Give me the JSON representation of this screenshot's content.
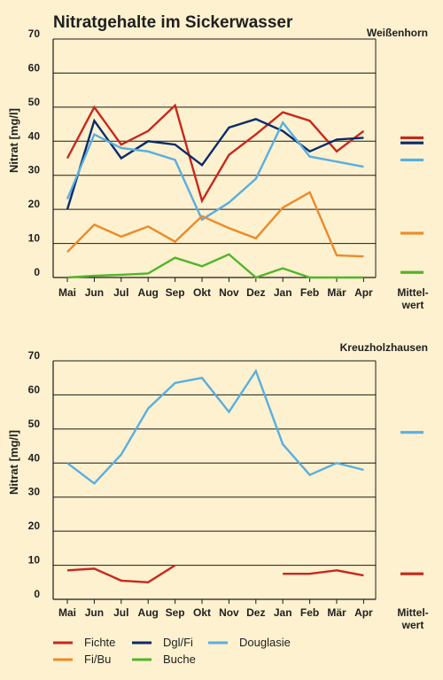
{
  "title": "Nitratgehalte im Sickerwasser",
  "colors": {
    "Fichte": "#c8281e",
    "Dgl/Fi": "#0a2a6a",
    "Douglasie": "#5aaee0",
    "Fi/Bu": "#ec8a2a",
    "Buche": "#52b52a"
  },
  "legend": [
    "Fichte",
    "Dgl/Fi",
    "Douglasie",
    "Fi/Bu",
    "Buche"
  ],
  "chart_data": [
    {
      "type": "line",
      "site": "Weißenhorn",
      "ylabel": "Nitrat [mg/l]",
      "yticks": [
        "70",
        "60",
        "50",
        "40",
        "30",
        "20",
        "10",
        "0"
      ],
      "ylim": [
        0,
        70
      ],
      "categories": [
        "Mai",
        "Jun",
        "Jul",
        "Aug",
        "Sep",
        "Okt",
        "Nov",
        "Dez",
        "Jan",
        "Feb",
        "Mär",
        "Apr"
      ],
      "mean_label": "Mittel-\nwert",
      "series": [
        {
          "name": "Fichte",
          "values": [
            35,
            50,
            39,
            43,
            50.5,
            22.5,
            36,
            42,
            48.5,
            46,
            37,
            43
          ],
          "mean": 41
        },
        {
          "name": "Dgl/Fi",
          "values": [
            20,
            46,
            35,
            40,
            39,
            33,
            44,
            46.5,
            43,
            37,
            40.5,
            41
          ],
          "mean": 39.5
        },
        {
          "name": "Douglasie",
          "values": [
            23,
            42,
            38,
            37,
            34.5,
            17,
            22,
            29,
            45.5,
            35.5,
            34,
            32.5
          ],
          "mean": 34.5
        },
        {
          "name": "Fi/Bu",
          "values": [
            7.5,
            15.5,
            12,
            15,
            10.5,
            18,
            14.5,
            11.5,
            20.5,
            25,
            6.5,
            6.2
          ],
          "mean": 13
        },
        {
          "name": "Buche",
          "values": [
            0,
            0.5,
            0.8,
            1.2,
            5.8,
            3.3,
            6.8,
            0,
            2.7,
            0,
            0,
            0
          ],
          "mean": 1.5
        }
      ]
    },
    {
      "type": "line",
      "site": "Kreuzholzhausen",
      "ylabel": "Nitrat [mg/l]",
      "yticks": [
        "70",
        "60",
        "50",
        "40",
        "30",
        "20",
        "10",
        "0"
      ],
      "ylim": [
        0,
        70
      ],
      "categories": [
        "Mai",
        "Jun",
        "Jul",
        "Aug",
        "Sep",
        "Okt",
        "Nov",
        "Dez",
        "Jan",
        "Feb",
        "Mär",
        "Apr"
      ],
      "mean_label": "Mittel-\nwert",
      "series": [
        {
          "name": "Douglasie",
          "values": [
            40,
            34,
            42.5,
            56,
            63.5,
            65,
            55,
            67,
            45.5,
            36.5,
            40,
            38
          ],
          "mean": 49
        },
        {
          "name": "Fichte",
          "values": [
            8.5,
            9,
            5.5,
            5,
            10,
            null,
            null,
            null,
            7.5,
            7.5,
            8.5,
            7
          ],
          "mean": 7.5
        }
      ]
    }
  ]
}
